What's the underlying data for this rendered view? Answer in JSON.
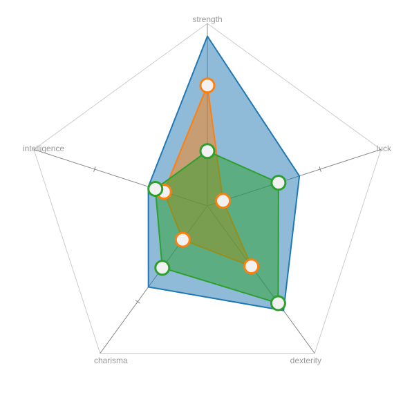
{
  "chart_data": {
    "type": "radar",
    "axes": [
      "strength",
      "luck",
      "dexterity",
      "charisma",
      "intelligence"
    ],
    "range": [
      0,
      10
    ],
    "grid": true,
    "series": [
      {
        "values": [
          9.3,
          5.3,
          7.1,
          5.5,
          3.4
        ],
        "color": "#1f77b4",
        "fill": "#1f77b4",
        "fill_opacity": 0.5,
        "markers": false
      },
      {
        "values": [
          6.6,
          0.9,
          4.1,
          2.3,
          2.5
        ],
        "color": "#ff7f0e",
        "fill": "#ff7f0e",
        "fill_opacity": 0.5,
        "markers": true
      },
      {
        "values": [
          3.0,
          4.1,
          6.6,
          4.2,
          3.0
        ],
        "color": "#2ca02c",
        "fill": "#2ca02c",
        "fill_opacity": 0.5,
        "markers": true
      }
    ],
    "marker_fill": "#f2f2f2",
    "grid_color": "#cccccc",
    "axis_color": "#888888"
  }
}
